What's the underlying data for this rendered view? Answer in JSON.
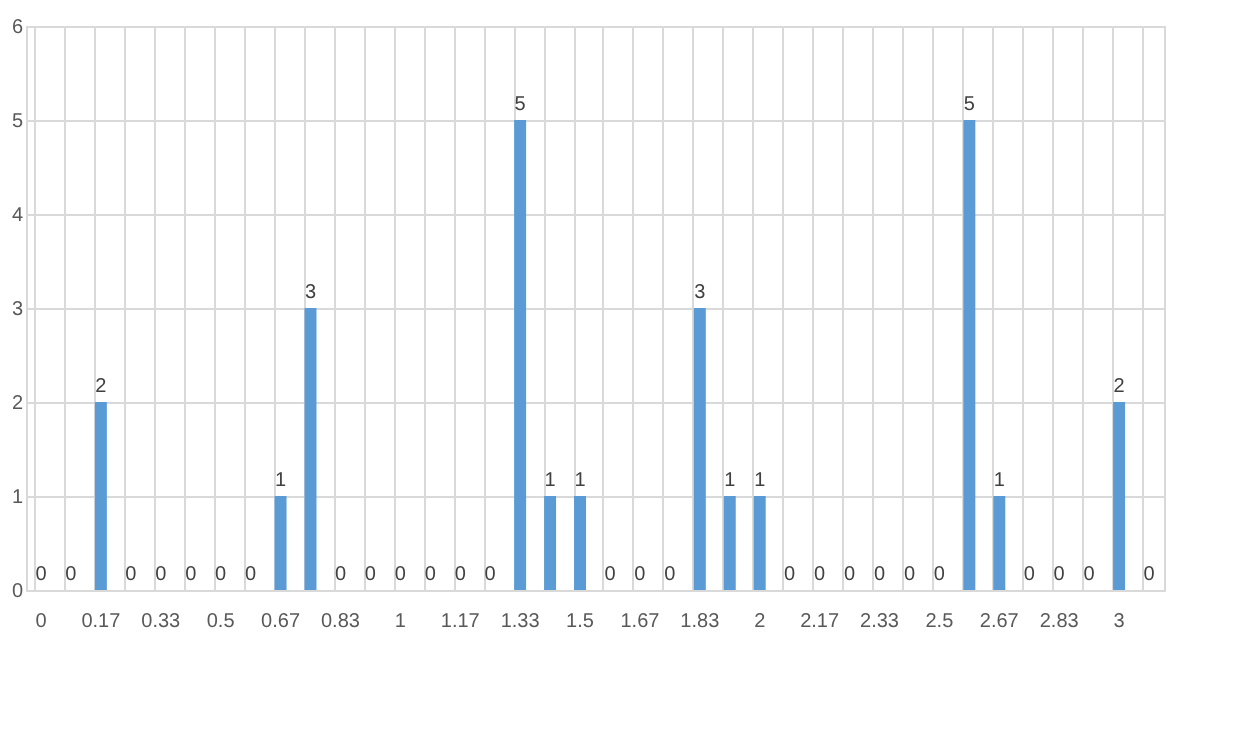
{
  "chart_data": {
    "type": "bar",
    "categories": [
      "0",
      null,
      "0.17",
      null,
      "0.33",
      null,
      "0.5",
      null,
      "0.67",
      null,
      "0.83",
      null,
      "1",
      null,
      "1.17",
      null,
      "1.33",
      null,
      "1.5",
      null,
      "1.67",
      null,
      "1.83",
      null,
      "2",
      null,
      "2.17",
      null,
      "2.33",
      null,
      "2.5",
      null,
      "2.67",
      null,
      "2.83",
      null,
      "3",
      null
    ],
    "values": [
      0,
      0,
      2,
      0,
      0,
      0,
      0,
      0,
      1,
      3,
      0,
      0,
      0,
      0,
      0,
      0,
      5,
      1,
      1,
      0,
      0,
      0,
      3,
      1,
      1,
      0,
      0,
      0,
      0,
      0,
      0,
      5,
      1,
      0,
      0,
      0,
      2,
      0
    ],
    "color": "#5b9bd5",
    "ylim": [
      0,
      6
    ],
    "yticks": [
      0,
      1,
      2,
      3,
      4,
      5,
      6
    ],
    "grid": true,
    "data_labels": true
  }
}
